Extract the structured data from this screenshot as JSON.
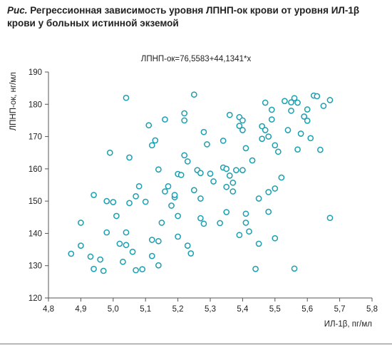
{
  "caption": {
    "prefix": "Рис.",
    "text": " Регрессионная зависимость уровня ЛПНП-ок крови от уровня ИЛ-1β крови у больных истинной экземой"
  },
  "equation": "ЛПНП-ок=76,5583+44,1341*x",
  "colors": {
    "points": "#1a9fb0",
    "line": "#e0484c",
    "axis": "#555555"
  },
  "chart_data": {
    "type": "scatter",
    "title": "",
    "xlabel": "ИЛ-1β, пг/мл",
    "ylabel": "ЛПНП-ок, нг/мл",
    "xlim": [
      4.8,
      5.8
    ],
    "ylim": [
      120,
      190
    ],
    "grid": false,
    "x_ticks": [
      "4,8",
      "4,9",
      "5,0",
      "5,1",
      "5,2",
      "5,3",
      "5,4",
      "5,5",
      "5,6",
      "5,7",
      "5,8"
    ],
    "y_ticks": [
      "120",
      "130",
      "140",
      "150",
      "160",
      "170",
      "180",
      "190"
    ],
    "regression": {
      "intercept": 76.5583,
      "slope": 44.1341
    },
    "points": [
      [
        4.87,
        133.7
      ],
      [
        4.9,
        143.3
      ],
      [
        4.9,
        136.2
      ],
      [
        4.93,
        132.8
      ],
      [
        4.94,
        129.0
      ],
      [
        4.94,
        151.9
      ],
      [
        4.96,
        131.9
      ],
      [
        4.97,
        128.4
      ],
      [
        4.98,
        140.3
      ],
      [
        4.98,
        150.0
      ],
      [
        4.99,
        165.0
      ],
      [
        5.0,
        149.7
      ],
      [
        5.01,
        145.4
      ],
      [
        5.02,
        136.8
      ],
      [
        5.03,
        131.2
      ],
      [
        5.04,
        182.0
      ],
      [
        5.04,
        140.3
      ],
      [
        5.04,
        136.4
      ],
      [
        5.05,
        163.5
      ],
      [
        5.05,
        149.4
      ],
      [
        5.06,
        134.3
      ],
      [
        5.07,
        128.6
      ],
      [
        5.07,
        151.5
      ],
      [
        5.08,
        154.6
      ],
      [
        5.09,
        128.9
      ],
      [
        5.1,
        149.8
      ],
      [
        5.11,
        173.5
      ],
      [
        5.12,
        167.3
      ],
      [
        5.12,
        138.0
      ],
      [
        5.12,
        133.0
      ],
      [
        5.13,
        168.8
      ],
      [
        5.14,
        159.8
      ],
      [
        5.14,
        130.1
      ],
      [
        5.14,
        137.6
      ],
      [
        5.15,
        143.3
      ],
      [
        5.16,
        175.3
      ],
      [
        5.16,
        153.0
      ],
      [
        5.17,
        154.6
      ],
      [
        5.18,
        148.6
      ],
      [
        5.19,
        151.2
      ],
      [
        5.19,
        151.9
      ],
      [
        5.2,
        158.4
      ],
      [
        5.2,
        145.4
      ],
      [
        5.2,
        139.0
      ],
      [
        5.21,
        158.1
      ],
      [
        5.22,
        177.2
      ],
      [
        5.22,
        175.0
      ],
      [
        5.22,
        164.2
      ],
      [
        5.23,
        162.3
      ],
      [
        5.23,
        136.2
      ],
      [
        5.24,
        133.8
      ],
      [
        5.25,
        183.0
      ],
      [
        5.25,
        153.4
      ],
      [
        5.26,
        159.6
      ],
      [
        5.27,
        158.7
      ],
      [
        5.27,
        150.8
      ],
      [
        5.27,
        144.7
      ],
      [
        5.28,
        171.4
      ],
      [
        5.28,
        143.0
      ],
      [
        5.29,
        167.6
      ],
      [
        5.3,
        158.5
      ],
      [
        5.31,
        156.1
      ],
      [
        5.33,
        143.2
      ],
      [
        5.34,
        168.7
      ],
      [
        5.34,
        160.4
      ],
      [
        5.35,
        160.0
      ],
      [
        5.35,
        154.4
      ],
      [
        5.35,
        146.6
      ],
      [
        5.36,
        176.7
      ],
      [
        5.36,
        157.9
      ],
      [
        5.37,
        155.7
      ],
      [
        5.37,
        153.0
      ],
      [
        5.38,
        159.6
      ],
      [
        5.39,
        173.3
      ],
      [
        5.39,
        176.0
      ],
      [
        5.39,
        139.5
      ],
      [
        5.4,
        175.0
      ],
      [
        5.4,
        172.0
      ],
      [
        5.4,
        159.6
      ],
      [
        5.41,
        166.4
      ],
      [
        5.41,
        146.1
      ],
      [
        5.41,
        143.3
      ],
      [
        5.42,
        140.6
      ],
      [
        5.43,
        162.6
      ],
      [
        5.44,
        129.0
      ],
      [
        5.45,
        150.8
      ],
      [
        5.45,
        136.8
      ],
      [
        5.46,
        173.2
      ],
      [
        5.46,
        169.3
      ],
      [
        5.47,
        180.5
      ],
      [
        5.47,
        172.0
      ],
      [
        5.48,
        170.0
      ],
      [
        5.48,
        152.8
      ],
      [
        5.48,
        146.7
      ],
      [
        5.49,
        178.3
      ],
      [
        5.49,
        175.3
      ],
      [
        5.5,
        138.5
      ],
      [
        5.5,
        167.3
      ],
      [
        5.5,
        153.9
      ],
      [
        5.51,
        165.3
      ],
      [
        5.52,
        157.3
      ],
      [
        5.53,
        181.0
      ],
      [
        5.54,
        172.0
      ],
      [
        5.55,
        180.6
      ],
      [
        5.55,
        178.0
      ],
      [
        5.56,
        181.9
      ],
      [
        5.56,
        129.1
      ],
      [
        5.57,
        166.0
      ],
      [
        5.57,
        180.5
      ],
      [
        5.58,
        170.9
      ],
      [
        5.59,
        176.2
      ],
      [
        5.6,
        178.4
      ],
      [
        5.6,
        174.9
      ],
      [
        5.61,
        169.5
      ],
      [
        5.62,
        182.7
      ],
      [
        5.63,
        182.5
      ],
      [
        5.64,
        165.9
      ],
      [
        5.65,
        179.5
      ],
      [
        5.67,
        181.3
      ],
      [
        5.67,
        144.8
      ]
    ]
  }
}
